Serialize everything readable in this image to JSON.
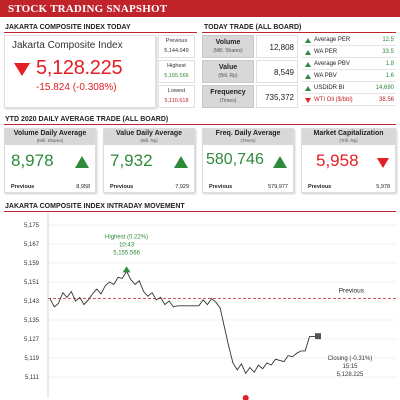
{
  "header": {
    "title": "STOCK TRADING SNAPSHOT"
  },
  "composite": {
    "section_title": "JAKARTA COMPOSITE INDEX TODAY",
    "name": "Jakarta Composite Index",
    "value": "5,128.225",
    "change": "-15.824 (-0.308%)",
    "previous_label": "Previous",
    "previous_value": "5,144.049",
    "highest_label": "Highest",
    "highest_value": "5,155.566",
    "lowest_label": "Lowest",
    "lowest_value": "5,110.618",
    "colors": {
      "down": "#e31e24",
      "up": "#2e8b3a"
    }
  },
  "today_trade": {
    "section_title": "TODAY TRADE (ALL BOARD)",
    "rows": [
      {
        "label": "Volume",
        "sub": "(Mill. Shares)",
        "value": "12,808"
      },
      {
        "label": "Value",
        "sub": "(Bill. Rp)",
        "value": "8,549"
      },
      {
        "label": "Frequency",
        "sub": "(Times)",
        "value": "735,372"
      }
    ]
  },
  "ratios": [
    {
      "label": "Average PER",
      "value": "12.5",
      "trend": "up"
    },
    {
      "label": "WA PER",
      "value": "33.5",
      "trend": "up"
    },
    {
      "label": "Average PBV",
      "value": "1.8",
      "trend": "up"
    },
    {
      "label": "WA PBV",
      "value": "1.6",
      "trend": "up"
    },
    {
      "label": "USDIDR BI",
      "value": "14,690",
      "trend": "up"
    },
    {
      "label": "WTI Oil ($/bbl)",
      "value": "38.56",
      "trend": "down"
    }
  ],
  "ytd": {
    "section_title": "YTD 2020 DAILY AVERAGE TRADE (ALL BOARD)",
    "cards": [
      {
        "title": "Volume Daily Average",
        "sub": "(Mill. Shares)",
        "value": "8,978",
        "trend": "up",
        "prev_label": "Previous",
        "prev_value": "8,958"
      },
      {
        "title": "Value Daily Average",
        "sub": "(Bill. Rp)",
        "value": "7,932",
        "trend": "up",
        "prev_label": "Previous",
        "prev_value": "7,929"
      },
      {
        "title": "Freq. Daily Average",
        "sub": "(Times)",
        "value": "580,746",
        "trend": "up",
        "prev_label": "Previous",
        "prev_value": "579,977"
      },
      {
        "title": "Market Capitalization",
        "sub": "(Trill. Rp)",
        "value": "5,958",
        "trend": "down",
        "prev_label": "Previous",
        "prev_value": "5,978"
      }
    ]
  },
  "chart_data": {
    "type": "line",
    "section_title": "JAKARTA COMPOSITE INDEX INTRADAY MOVEMENT",
    "y_ticks": [
      "5,175",
      "5,167",
      "5,159",
      "5,151",
      "5,143",
      "5,135",
      "5,127",
      "5,119",
      "5,111"
    ],
    "ylim": [
      5111,
      5175
    ],
    "previous": {
      "label": "Previous",
      "value": 5144.049
    },
    "highest": {
      "label": "Highest (0.22%)",
      "time": "10:43",
      "value": "5,155.566",
      "y": 5155.566
    },
    "closing": {
      "label": "Closing (-0.31%)",
      "time": "15:15",
      "value": "5,128.225",
      "y": 5128.225
    },
    "series": [
      {
        "values": [
          5144.0,
          5140.5,
          5142.0,
          5146.5,
          5144.5,
          5147.0,
          5143.0,
          5144.5,
          5141.5,
          5143.5,
          5146.0,
          5148.0,
          5146.0,
          5149.5,
          5151.0,
          5150.0,
          5153.0,
          5152.5,
          5155.5,
          5152.0,
          5150.0,
          5151.5,
          5147.0,
          5145.0,
          5146.5,
          5143.5,
          5144.5,
          5141.5,
          5143.0,
          5140.5,
          5141.0,
          5141.0,
          5141.0,
          5141.0,
          5141.0,
          5141.0,
          5143.5,
          5141.5,
          5144.0,
          5142.5,
          5140.0,
          5132.0,
          5124.0,
          5117.0,
          5114.0,
          5116.5,
          5112.5,
          5115.0,
          5113.0,
          5116.0,
          5114.5,
          5117.0,
          5116.0,
          5118.5,
          5118.0,
          5117.5,
          5120.0,
          5119.5,
          5121.0,
          5122.0,
          5122.0,
          5128.0,
          5128.0,
          5128.2
        ]
      }
    ]
  }
}
